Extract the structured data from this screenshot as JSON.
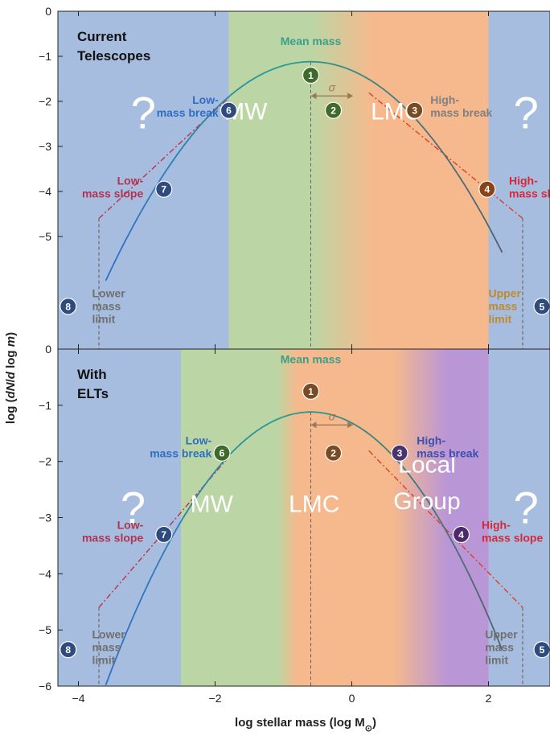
{
  "chart_data": [
    {
      "type": "line",
      "panel": "top",
      "title": "Current Telescopes",
      "title_lines": [
        "Current",
        "Telescopes"
      ],
      "xlabel": "log stellar mass (log M⊙)",
      "ylabel": "log (dN/d log m)",
      "xlim": [
        -4.3,
        2.9
      ],
      "ylim": [
        -7.5,
        0
      ],
      "yticks": [
        0,
        -1,
        -2,
        -3,
        -4,
        -5
      ],
      "ytick_labels": [
        "0",
        "−1",
        "−2",
        "−3",
        "−4",
        "−5"
      ],
      "xticks": [
        -4,
        -2,
        0,
        2
      ],
      "xtick_labels": [
        "−4",
        "−2",
        "0",
        "2"
      ],
      "mean_mass": -0.6,
      "peak": -1.12,
      "sigma_curvature": 0.54,
      "bands": [
        {
          "xmin": -4.3,
          "xmax": -1.8,
          "color": "#a7bde0"
        },
        {
          "xmin": -1.8,
          "xmax": -0.6,
          "color": "#bbd6a4"
        },
        {
          "xmin": -0.6,
          "xmax": 0.3,
          "color_from": "#bbd6a4",
          "color_to": "#f6b98d"
        },
        {
          "xmin": 0.3,
          "xmax": 2.0,
          "color": "#f6b98d"
        },
        {
          "xmin": 2.0,
          "xmax": 2.9,
          "color": "#a7bde0"
        }
      ],
      "regions": [
        {
          "label": "MW",
          "x": -1.55,
          "y": -2.4
        },
        {
          "label": "LMC",
          "x": 0.65,
          "y": -2.4
        }
      ],
      "unknowns": [
        {
          "label": "?",
          "x": -3.05,
          "y": -2.6
        },
        {
          "label": "?",
          "x": 2.55,
          "y": -2.6
        }
      ],
      "low_slope_line": {
        "x": [
          -3.7,
          -1.8
        ],
        "y": [
          -4.6,
          -1.92
        ]
      },
      "high_slope_line": {
        "x": [
          0.25,
          2.5
        ],
        "y": [
          -1.81,
          -4.6
        ]
      },
      "lower_limit": {
        "x": -3.7,
        "y": [
          -4.6,
          -7.5
        ]
      },
      "upper_limit": {
        "x": 2.5,
        "y": [
          -4.6,
          -7.5
        ]
      },
      "sigma_arrow": {
        "x": [
          -0.6,
          0.02
        ],
        "y": -1.88
      },
      "sigma_label": "σ",
      "markers": [
        {
          "num": "1",
          "x": -0.6,
          "y": -1.42,
          "color": "#3f6b2a",
          "label": "Mean mass",
          "label_lines": [
            "Mean mass"
          ],
          "label_color": "#3aa08a",
          "label_x": -0.6,
          "label_y": -0.75,
          "anchor": "middle"
        },
        {
          "num": "2",
          "x": -0.27,
          "y": -2.2,
          "color": "#3f6b2a"
        },
        {
          "num": "3",
          "x": 0.92,
          "y": -2.2,
          "color": "#7a4a22",
          "label": "High-mass break",
          "label_lines": [
            "High-",
            "mass break"
          ],
          "label_color": "#808080",
          "label_x": 1.15,
          "label_y": -2.05,
          "anchor": "start"
        },
        {
          "num": "4",
          "x": 1.98,
          "y": -3.95,
          "color": "#8a4418",
          "label": "High-mass slope",
          "label_lines": [
            "High-",
            "mass slope"
          ],
          "label_color": "#d6283a",
          "label_x": 2.3,
          "label_y": -3.85,
          "anchor": "start"
        },
        {
          "num": "5",
          "x": 3.4,
          "y": -6.55,
          "color": "#2f4a7d",
          "label": "Upper mass limit",
          "label_lines": [
            "Upper",
            "mass",
            "limit"
          ],
          "label_color": "#c08a2e",
          "label_x": 2.0,
          "label_y": -6.35,
          "anchor": "start"
        },
        {
          "num": "6",
          "x": -1.8,
          "y": -2.2,
          "color": "#2f4a7d",
          "label": "Low-mass break",
          "label_lines": [
            "Low-",
            "mass break"
          ],
          "label_color": "#2f6fc0",
          "label_x": -1.95,
          "label_y": -2.05,
          "anchor": "end"
        },
        {
          "num": "7",
          "x": -2.75,
          "y": -3.95,
          "color": "#2f4a7d",
          "label": "Low-mass slope",
          "label_lines": [
            "Low-",
            "mass slope"
          ],
          "label_color": "#b03550",
          "label_x": -3.05,
          "label_y": -3.85,
          "anchor": "end"
        },
        {
          "num": "8",
          "x": -4.15,
          "y": -6.55,
          "color": "#2f4a7d",
          "label": "Lower mass limit",
          "label_lines": [
            "Lower",
            "mass",
            "limit"
          ],
          "label_color": "#707070",
          "label_x": -3.8,
          "label_y": -6.35,
          "anchor": "start"
        }
      ]
    },
    {
      "type": "line",
      "panel": "bottom",
      "title": "With ELTs",
      "title_lines": [
        "With",
        "ELTs"
      ],
      "xlabel": "log stellar mass (log M⊙)",
      "ylabel": "log (dN/d log m)",
      "xlim": [
        -4.3,
        2.9
      ],
      "ylim": [
        -6,
        0
      ],
      "yticks": [
        0,
        -1,
        -2,
        -3,
        -4,
        -5,
        -6
      ],
      "ytick_labels": [
        "0",
        "−1",
        "−2",
        "−3",
        "−4",
        "−5",
        "−6"
      ],
      "xticks": [
        -4,
        -2,
        0,
        2
      ],
      "xtick_labels": [
        "−4",
        "−2",
        "0",
        "2"
      ],
      "mean_mass": -0.6,
      "peak": -1.12,
      "sigma_curvature": 0.54,
      "bands": [
        {
          "xmin": -4.3,
          "xmax": -2.5,
          "color": "#a7bde0"
        },
        {
          "xmin": -2.5,
          "xmax": -1.1,
          "color": "#bbd6a4"
        },
        {
          "xmin": -1.1,
          "xmax": -0.8,
          "color_from": "#bbd6a4",
          "color_to": "#f6b98d"
        },
        {
          "xmin": -0.8,
          "xmax": 0.6,
          "color": "#f6b98d"
        },
        {
          "xmin": 0.6,
          "xmax": 1.4,
          "color_from": "#f6b98d",
          "color_to": "#b996d6"
        },
        {
          "xmin": 1.4,
          "xmax": 2.0,
          "color": "#b996d6"
        },
        {
          "xmin": 2.0,
          "xmax": 2.9,
          "color": "#a7bde0"
        }
      ],
      "regions": [
        {
          "label": "MW",
          "x": -2.05,
          "y": -2.9
        },
        {
          "label": "LMC",
          "x": -0.55,
          "y": -2.9
        },
        {
          "label": "Local",
          "x": 1.1,
          "y": -2.2
        },
        {
          "label": "Group",
          "x": 1.1,
          "y": -2.85
        }
      ],
      "unknowns": [
        {
          "label": "?",
          "x": -3.2,
          "y": -3.1
        },
        {
          "label": "?",
          "x": 2.55,
          "y": -3.1
        }
      ],
      "low_slope_line": {
        "x": [
          -3.7,
          -1.8
        ],
        "y": [
          -4.6,
          -1.92
        ]
      },
      "high_slope_line": {
        "x": [
          0.25,
          2.5
        ],
        "y": [
          -1.81,
          -4.6
        ]
      },
      "lower_limit": {
        "x": -3.7,
        "y": [
          -4.6,
          -6
        ]
      },
      "upper_limit": {
        "x": 2.5,
        "y": [
          -4.6,
          -6
        ]
      },
      "sigma_arrow": {
        "x": [
          -0.6,
          0.02
        ],
        "y": -1.35
      },
      "sigma_label": "σ",
      "markers": [
        {
          "num": "1",
          "x": -0.6,
          "y": -0.75,
          "color": "#7a4a22",
          "label": "Mean mass",
          "label_lines": [
            "Mean mass"
          ],
          "label_color": "#3aa08a",
          "label_x": -0.6,
          "label_y": -0.25,
          "anchor": "middle"
        },
        {
          "num": "2",
          "x": -0.27,
          "y": -1.85,
          "color": "#7a4a22"
        },
        {
          "num": "3",
          "x": 0.7,
          "y": -1.85,
          "color": "#4a3470",
          "label": "High-mass break",
          "label_lines": [
            "High-",
            "mass break"
          ],
          "label_color": "#3a4fb0",
          "label_x": 0.95,
          "label_y": -1.7,
          "anchor": "start"
        },
        {
          "num": "4",
          "x": 1.6,
          "y": -3.3,
          "color": "#4a2a6a",
          "label": "High-mass slope",
          "label_lines": [
            "High-",
            "mass slope"
          ],
          "label_color": "#d6283a",
          "label_x": 1.9,
          "label_y": -3.2,
          "anchor": "start"
        },
        {
          "num": "5",
          "x": 2.95,
          "y": -5.35,
          "color": "#2f4a7d",
          "label": "Upper mass limit",
          "label_lines": [
            "Upper",
            "mass",
            "limit"
          ],
          "label_color": "#707070",
          "label_x": 1.95,
          "label_y": -5.15,
          "anchor": "start"
        },
        {
          "num": "6",
          "x": -1.9,
          "y": -1.85,
          "color": "#3f6b2a",
          "label": "Low-mass break",
          "label_lines": [
            "Low-",
            "mass break"
          ],
          "label_color": "#2f6fc0",
          "label_x": -2.05,
          "label_y": -1.7,
          "anchor": "end"
        },
        {
          "num": "7",
          "x": -2.75,
          "y": -3.3,
          "color": "#2f4a7d",
          "label": "Low-mass slope",
          "label_lines": [
            "Low-",
            "mass slope"
          ],
          "label_color": "#b03550",
          "label_x": -3.05,
          "label_y": -3.2,
          "anchor": "end"
        },
        {
          "num": "8",
          "x": -4.15,
          "y": -5.35,
          "color": "#2f4a7d",
          "label": "Lower mass limit",
          "label_lines": [
            "Lower",
            "mass",
            "limit"
          ],
          "label_color": "#707070",
          "label_x": -3.8,
          "label_y": -5.15,
          "anchor": "start"
        }
      ]
    }
  ],
  "colors": {
    "imf_curve_left": "#2e6ec8",
    "imf_curve_mid": "#2a9d8f",
    "imf_curve_right": "#556070",
    "low_slope": "#c03048",
    "high_slope": "#e04020",
    "limit_line": "#707070",
    "mean_line": "#606060",
    "sigma_arrow": "#9a7a55"
  }
}
